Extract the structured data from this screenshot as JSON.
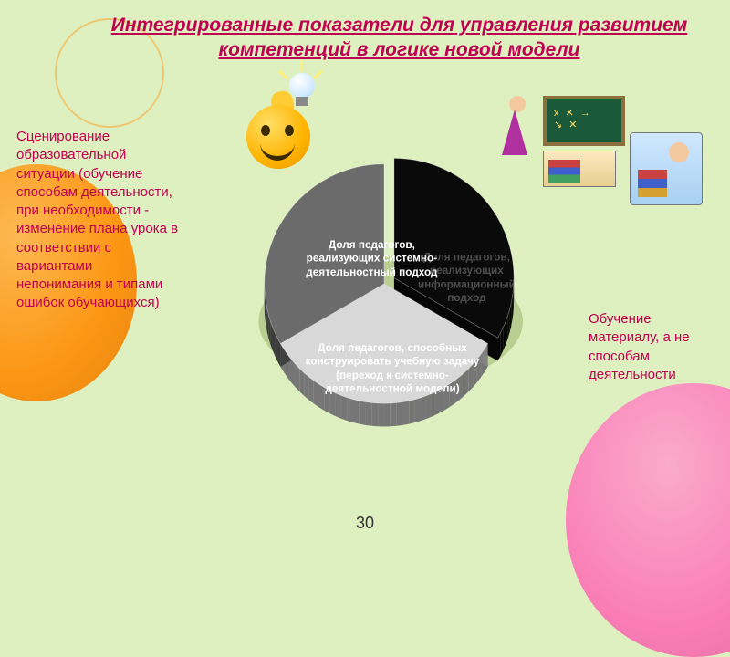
{
  "title": "Интегрированные показатели для управления развитием компетенций в логике новой модели",
  "left_text": "Сценирование образовательной ситуации (обучение способам деятельности, при необходимости - изменение плана урока в соответствии с вариантами непонимания и типами ошибок обучающихся)",
  "right_text": "Обучение материалу, а не способам деятельности",
  "page_number": "30",
  "pie": {
    "slices": [
      {
        "label": "Доля педагогов, реализующих системно-деятельностный подход",
        "color": "#0a0a0a",
        "start": -90,
        "end": 30,
        "exploded": true
      },
      {
        "label": "Доля педагогов, реализующих информационный подход",
        "color": "#d8d8d8",
        "start": 30,
        "end": 150,
        "faded": true
      },
      {
        "label": "Доля педагогов, способных конструировать учебную задачу (переход к системно-деятельностной модели)",
        "color": "#6b6b6b",
        "start": 150,
        "end": 270
      }
    ],
    "background_shadow": "#a8c078"
  },
  "colors": {
    "background": "#dff0c0",
    "title": "#c00050",
    "balloon_orange": "#ff8c00",
    "balloon_pink": "#ff69b4"
  }
}
